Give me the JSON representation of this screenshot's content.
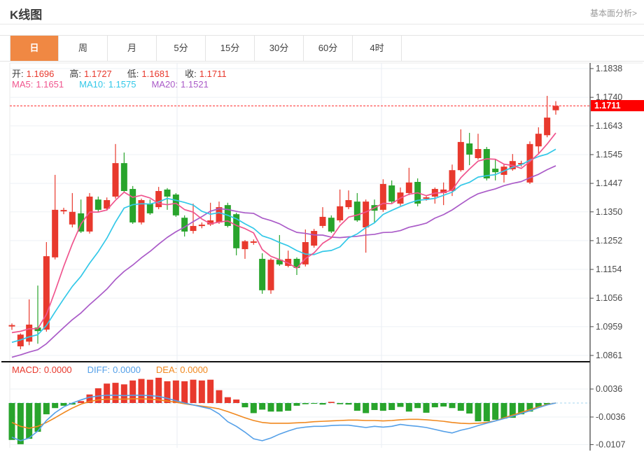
{
  "header": {
    "title": "K线图",
    "link": "基本面分析>"
  },
  "tabs": {
    "active_index": 0,
    "items": [
      {
        "label": "日"
      },
      {
        "label": "周"
      },
      {
        "label": "月"
      },
      {
        "label": "5分"
      },
      {
        "label": "15分"
      },
      {
        "label": "30分"
      },
      {
        "label": "60分"
      },
      {
        "label": "4时"
      }
    ]
  },
  "legend": {
    "ohlc": [
      {
        "label": "开:",
        "value": "1.1696"
      },
      {
        "label": "高:",
        "value": "1.1727"
      },
      {
        "label": "低:",
        "value": "1.1681"
      },
      {
        "label": "收:",
        "value": "1.1711"
      }
    ],
    "ma": [
      {
        "label": "MA5:",
        "value": "1.1651",
        "color_key": "ma5"
      },
      {
        "label": "MA10:",
        "value": "1.1575",
        "color_key": "ma10"
      },
      {
        "label": "MA20:",
        "value": "1.1521",
        "color_key": "ma20"
      }
    ],
    "macd": [
      {
        "label": "MACD:",
        "value": "0.0000",
        "color_key": "macdLabel"
      },
      {
        "label": "DIFF:",
        "value": "0.0000",
        "color_key": "diff"
      },
      {
        "label": "DEA:",
        "value": "0.0000",
        "color_key": "dea"
      }
    ]
  },
  "price_marker": {
    "value": "1.1711",
    "price": 1.1711
  },
  "colors": {
    "up": "#e8392d",
    "down": "#28a42c",
    "badge": "#fe0000",
    "priceLine": "#ff4040",
    "ma5": "#f0558e",
    "ma10": "#33c8e8",
    "ma20": "#aa5bc8",
    "diff": "#55a0e8",
    "dea": "#f0881e",
    "macdLabel": "#e8392d",
    "zeroLine": "#a5d5ef",
    "grid": "#edf1f5",
    "gridV": "#e8eef3",
    "axis": "#3c3c3c",
    "tickText": "#4a4a4a",
    "border": "#e8e8e8",
    "tabActive": "#f08843",
    "mainAxis": "#111111"
  },
  "chart_data": {
    "type": "candlestick+macd",
    "main": {
      "y_ticks": [
        1.1838,
        1.174,
        1.1643,
        1.1545,
        1.1447,
        1.135,
        1.1252,
        1.1154,
        1.1056,
        1.0959,
        1.0861
      ],
      "y_range": [
        1.0861,
        1.1838
      ],
      "current_price": 1.1711,
      "ma_periods": [
        5,
        10,
        20
      ],
      "ma_seed": [
        1.076,
        1.0768,
        1.0776,
        1.0784,
        1.0792,
        1.08,
        1.0808,
        1.0816,
        1.0824,
        1.0832,
        1.084,
        1.085,
        1.086,
        1.0872,
        1.0884,
        1.0896,
        1.091,
        1.0924,
        1.094,
        1.0958
      ],
      "candles_ohlc": [
        [
          1.0962,
          1.097,
          1.0948,
          1.0962
        ],
        [
          1.0892,
          1.0936,
          1.0882,
          1.0932
        ],
        [
          1.0908,
          1.1052,
          1.0896,
          1.0966
        ],
        [
          1.0956,
          1.1099,
          1.0901,
          1.0944
        ],
        [
          1.0949,
          1.1247,
          1.0942,
          1.1199
        ],
        [
          1.1195,
          1.1476,
          1.1188,
          1.1357
        ],
        [
          1.1354,
          1.1364,
          1.1342,
          1.1354
        ],
        [
          1.1307,
          1.1414,
          1.1297,
          1.135
        ],
        [
          1.1345,
          1.1392,
          1.1278,
          1.1283
        ],
        [
          1.1283,
          1.1414,
          1.1276,
          1.1402
        ],
        [
          1.1392,
          1.1402,
          1.135,
          1.1357
        ],
        [
          1.1361,
          1.1399,
          1.1354,
          1.139
        ],
        [
          1.1402,
          1.1581,
          1.1395,
          1.1516
        ],
        [
          1.1516,
          1.1552,
          1.1416,
          1.1421
        ],
        [
          1.1428,
          1.1438,
          1.1309,
          1.1314
        ],
        [
          1.1314,
          1.1395,
          1.1307,
          1.139
        ],
        [
          1.1378,
          1.1392,
          1.134,
          1.1345
        ],
        [
          1.1366,
          1.1435,
          1.1359,
          1.1421
        ],
        [
          1.1426,
          1.1431,
          1.1357,
          1.1402
        ],
        [
          1.1409,
          1.1414,
          1.1333,
          1.1338
        ],
        [
          1.133,
          1.1338,
          1.1266,
          1.1283
        ],
        [
          1.1285,
          1.1378,
          1.1276,
          1.1302
        ],
        [
          1.1304,
          1.1314,
          1.1294,
          1.1304
        ],
        [
          1.1307,
          1.1381,
          1.1302,
          1.1321
        ],
        [
          1.1314,
          1.1385,
          1.1309,
          1.1366
        ],
        [
          1.1373,
          1.1381,
          1.1297,
          1.1302
        ],
        [
          1.1342,
          1.1347,
          1.1202,
          1.1226
        ],
        [
          1.1223,
          1.1254,
          1.119,
          1.125
        ],
        [
          1.1247,
          1.1256,
          1.1238,
          1.1247
        ],
        [
          1.119,
          1.1209,
          1.1071,
          1.1083
        ],
        [
          1.1083,
          1.1192,
          1.1071,
          1.1187
        ],
        [
          1.1187,
          1.1271,
          1.1166,
          1.1171
        ],
        [
          1.1166,
          1.1218,
          1.1161,
          1.119
        ],
        [
          1.119,
          1.1195,
          1.1135,
          1.1159
        ],
        [
          1.1171,
          1.129,
          1.1164,
          1.1247
        ],
        [
          1.1235,
          1.1292,
          1.1228,
          1.1285
        ],
        [
          1.1302,
          1.1366,
          1.1295,
          1.1333
        ],
        [
          1.133,
          1.1338,
          1.1278,
          1.1283
        ],
        [
          1.1321,
          1.1426,
          1.1314,
          1.1369
        ],
        [
          1.1366,
          1.1423,
          1.1359,
          1.139
        ],
        [
          1.1385,
          1.1414,
          1.1316,
          1.1321
        ],
        [
          1.1297,
          1.1392,
          1.1211,
          1.1385
        ],
        [
          1.1373,
          1.1392,
          1.1314,
          1.1354
        ],
        [
          1.1357,
          1.1461,
          1.135,
          1.1445
        ],
        [
          1.144,
          1.1457,
          1.1378,
          1.1385
        ],
        [
          1.1378,
          1.1433,
          1.1371,
          1.1416
        ],
        [
          1.1414,
          1.15,
          1.1407,
          1.145
        ],
        [
          1.1452,
          1.1464,
          1.1369,
          1.1378
        ],
        [
          1.1397,
          1.1406,
          1.1388,
          1.1397
        ],
        [
          1.1402,
          1.1433,
          1.1378,
          1.1428
        ],
        [
          1.1414,
          1.145,
          1.1373,
          1.1426
        ],
        [
          1.1421,
          1.1511,
          1.1404,
          1.1492
        ],
        [
          1.1492,
          1.1631,
          1.1487,
          1.1588
        ],
        [
          1.1583,
          1.1619,
          1.1509,
          1.1545
        ],
        [
          1.1533,
          1.1616,
          1.1528,
          1.1564
        ],
        [
          1.1564,
          1.1571,
          1.1457,
          1.1464
        ],
        [
          1.1497,
          1.1528,
          1.1457,
          1.1485
        ],
        [
          1.1476,
          1.1514,
          1.145,
          1.1504
        ],
        [
          1.1495,
          1.1547,
          1.149,
          1.1523
        ],
        [
          1.1514,
          1.1524,
          1.1504,
          1.1514
        ],
        [
          1.145,
          1.159,
          1.1445,
          1.1581
        ],
        [
          1.1573,
          1.1638,
          1.1547,
          1.1616
        ],
        [
          1.1611,
          1.1745,
          1.1604,
          1.1671
        ],
        [
          1.1696,
          1.1727,
          1.1681,
          1.1711
        ]
      ]
    },
    "macd": {
      "y_ticks": [
        0.0036,
        -0.0036,
        -0.0107
      ],
      "unit": 0.0001,
      "histogram": [
        -95,
        -106,
        -92,
        -74,
        -29,
        -13,
        -7,
        -4,
        5,
        22,
        38,
        50,
        52,
        48,
        58,
        62,
        60,
        65,
        56,
        58,
        56,
        60,
        58,
        60,
        33,
        15,
        9,
        -11,
        -26,
        -17,
        -22,
        -22,
        -20,
        -7,
        -3,
        -2,
        -4,
        3,
        -3,
        -4,
        -20,
        -26,
        -18,
        -20,
        -18,
        -10,
        -22,
        -13,
        -25,
        -11,
        -9,
        -13,
        -20,
        -27,
        -47,
        -47,
        -43,
        -40,
        -38,
        -29,
        -22,
        -11,
        -4,
        0
      ],
      "diff": [
        -88,
        -97,
        -90,
        -72,
        -45,
        -25,
        -10,
        0,
        8,
        15,
        18,
        20,
        20,
        19,
        20,
        20,
        19,
        17,
        12,
        6,
        0,
        -5,
        -10,
        -15,
        -28,
        -48,
        -60,
        -75,
        -92,
        -97,
        -90,
        -80,
        -72,
        -65,
        -62,
        -60,
        -60,
        -58,
        -57,
        -57,
        -60,
        -63,
        -60,
        -62,
        -60,
        -55,
        -58,
        -60,
        -63,
        -68,
        -73,
        -77,
        -70,
        -65,
        -58,
        -52,
        -46,
        -40,
        -34,
        -27,
        -20,
        -12,
        -5,
        0
      ],
      "dea": [
        -50,
        -60,
        -65,
        -60,
        -50,
        -38,
        -25,
        -13,
        -3,
        4,
        8,
        10,
        10,
        10,
        11,
        11,
        10,
        8,
        5,
        2,
        -2,
        -5,
        -8,
        -11,
        -15,
        -22,
        -30,
        -38,
        -45,
        -50,
        -52,
        -52,
        -52,
        -51,
        -50,
        -48,
        -47,
        -46,
        -45,
        -44,
        -44,
        -45,
        -45,
        -46,
        -45,
        -43,
        -42,
        -42,
        -43,
        -45,
        -47,
        -50,
        -52,
        -53,
        -52,
        -50,
        -46,
        -38,
        -31,
        -24,
        -17,
        -10,
        -4,
        0
      ]
    }
  }
}
